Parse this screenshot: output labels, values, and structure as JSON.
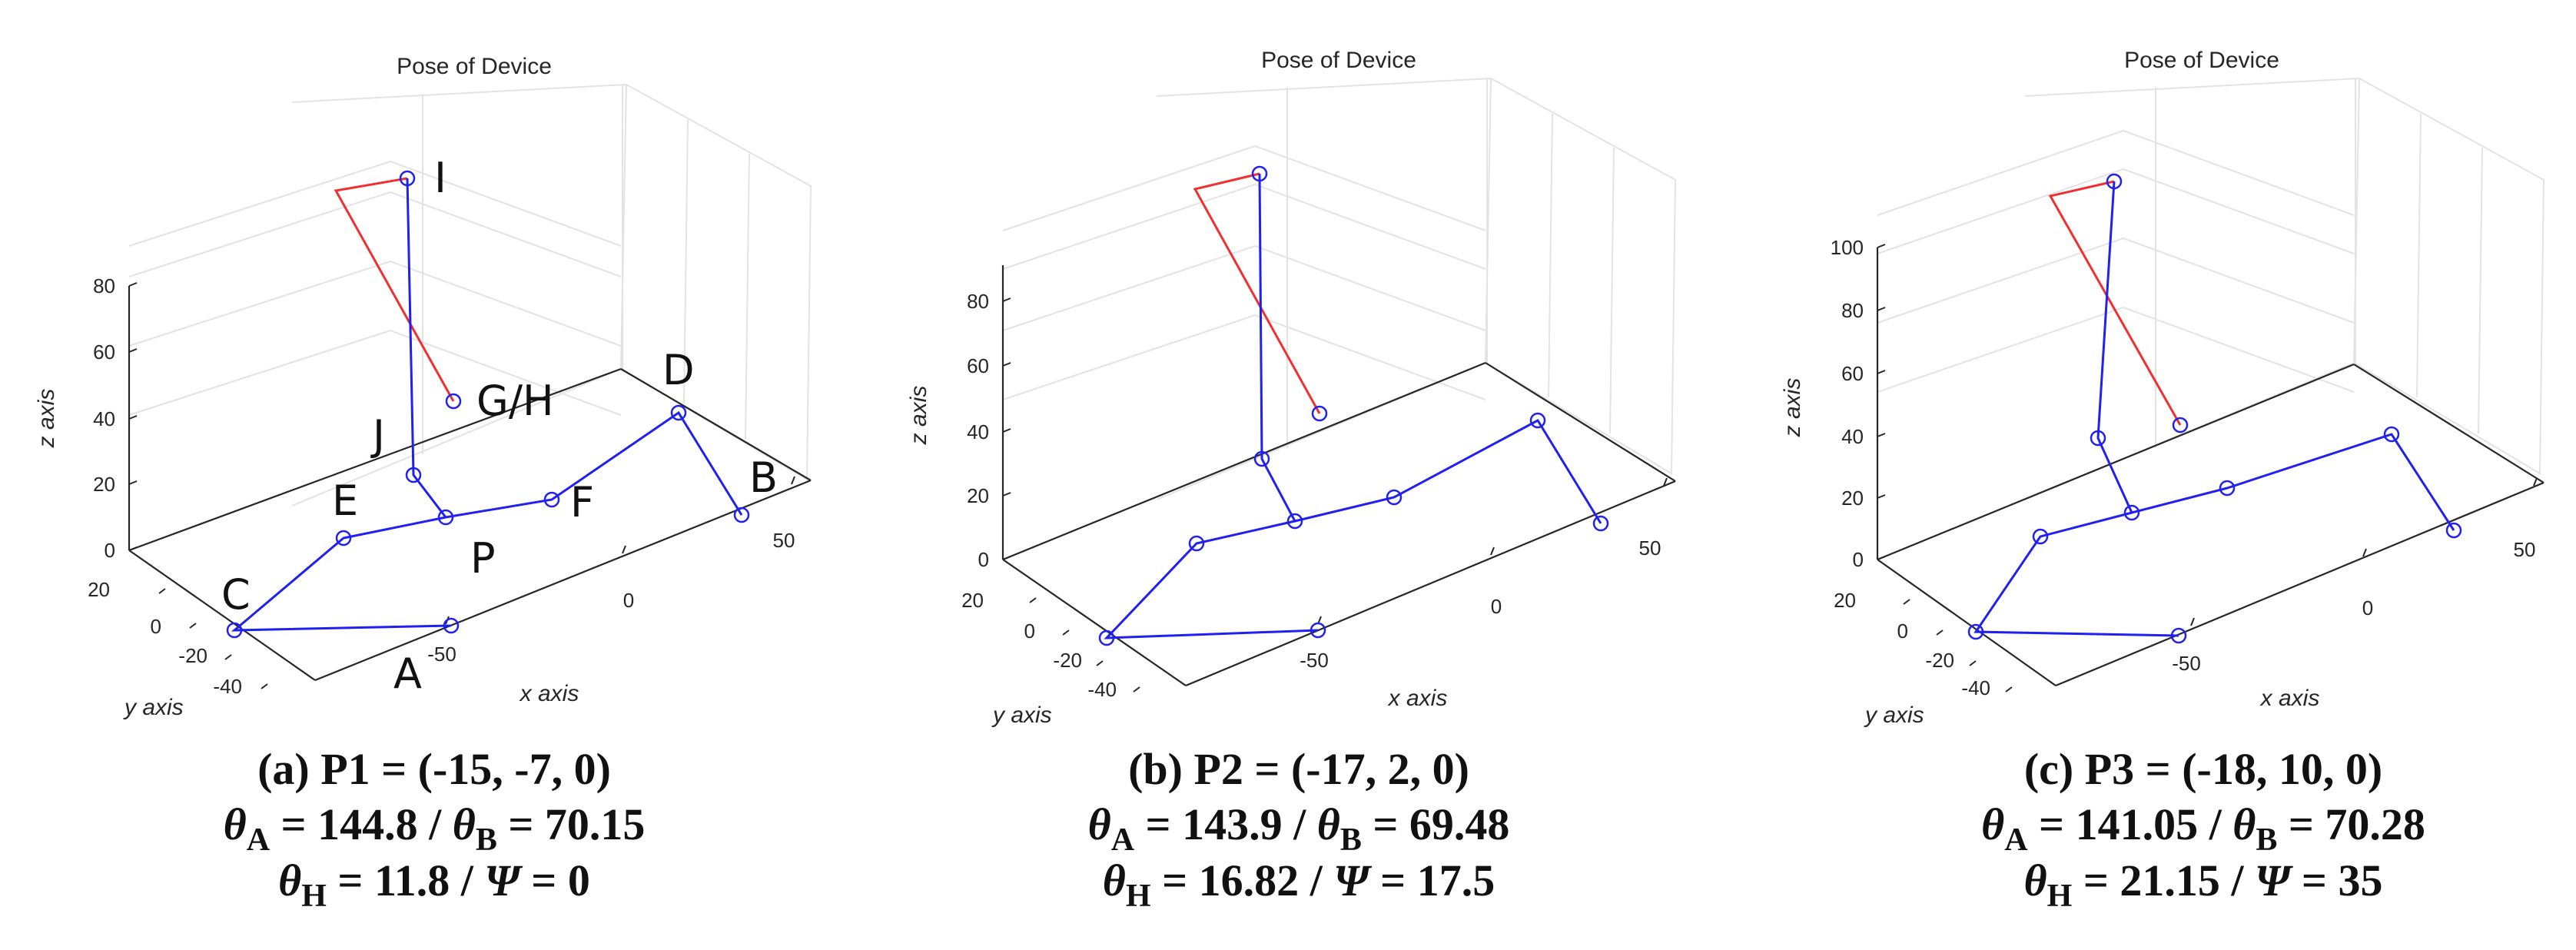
{
  "chart_data": [
    {
      "type": "line3d",
      "title": "Pose of Device",
      "xlabel": "x axis",
      "ylabel": "y axis",
      "zlabel": "z axis",
      "x_ticks": [
        "-50",
        "0",
        "50"
      ],
      "y_ticks": [
        "20",
        "0",
        "-20",
        "-40"
      ],
      "z_ticks": [
        "0",
        "20",
        "40",
        "60",
        "80"
      ],
      "grid": true,
      "point_labels": [
        "I",
        "G/H",
        "J",
        "D",
        "E",
        "F",
        "B",
        "C",
        "P",
        "A"
      ],
      "series": [
        {
          "color": "#2020f0",
          "marker": "o"
        },
        {
          "color": "#f03030"
        }
      ],
      "caption": {
        "line1": "(a) P1 = (-15, -7, 0)",
        "line2_sym1": "θ",
        "line2_sub1": "A",
        "line2_val1": " = 144.8 / ",
        "line2_sym2": "θ",
        "line2_sub2": "B",
        "line2_val2": " = 70.15",
        "line3_sym1": "θ",
        "line3_sub1": "H",
        "line3_val1": " = 11.8 / ",
        "line3_sym2": "Ψ",
        "line3_val2": " = 0"
      }
    },
    {
      "type": "line3d",
      "title": "Pose of Device",
      "xlabel": "x axis",
      "ylabel": "y axis",
      "zlabel": "z axis",
      "x_ticks": [
        "-50",
        "0",
        "50"
      ],
      "y_ticks": [
        "20",
        "0",
        "-20",
        "-40"
      ],
      "z_ticks": [
        "0",
        "20",
        "40",
        "60",
        "80"
      ],
      "grid": true,
      "series": [
        {
          "color": "#2020f0",
          "marker": "o"
        },
        {
          "color": "#f03030"
        }
      ],
      "caption": {
        "line1": "(b) P2 = (-17, 2, 0)",
        "line2_sym1": "θ",
        "line2_sub1": "A",
        "line2_val1": " = 143.9 / ",
        "line2_sym2": "θ",
        "line2_sub2": "B",
        "line2_val2": " = 69.48",
        "line3_sym1": "θ",
        "line3_sub1": "H",
        "line3_val1": " = 16.82 / ",
        "line3_sym2": "Ψ",
        "line3_val2": " = 17.5"
      }
    },
    {
      "type": "line3d",
      "title": "Pose of Device",
      "xlabel": "x axis",
      "ylabel": "y axis",
      "zlabel": "z axis",
      "x_ticks": [
        "-50",
        "0",
        "50"
      ],
      "y_ticks": [
        "20",
        "0",
        "-20",
        "-40"
      ],
      "z_ticks": [
        "0",
        "20",
        "40",
        "60",
        "80",
        "100"
      ],
      "grid": true,
      "series": [
        {
          "color": "#2020f0",
          "marker": "o"
        },
        {
          "color": "#f03030"
        }
      ],
      "caption": {
        "line1": "(c) P3 = (-18, 10, 0)",
        "line2_sym1": "θ",
        "line2_sub1": "A",
        "line2_val1": " = 141.05 / ",
        "line2_sym2": "θ",
        "line2_sub2": "B",
        "line2_val2": " = 70.28",
        "line3_sym1": "θ",
        "line3_sub1": "H",
        "line3_val1": " = 21.15 / ",
        "line3_sym2": "Ψ",
        "line3_val2": " = 35"
      }
    }
  ]
}
